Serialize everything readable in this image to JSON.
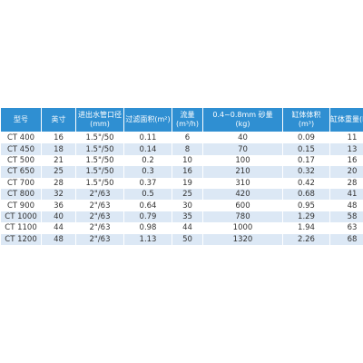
{
  "table": {
    "header": [
      [
        "型号"
      ],
      [
        "英寸"
      ],
      [
        "进出水管口径",
        "(mm)"
      ],
      [
        "过滤面积(m²)"
      ],
      [
        "流量",
        "(m³/h)"
      ],
      [
        "0.4~0.8mm 砂量",
        "(kg)"
      ],
      [
        "缸体体积",
        "(m³)"
      ],
      [
        "缸体重量(kg)"
      ]
    ],
    "rows": [
      [
        "CT 400",
        "16",
        "1.5\"/50",
        "0.11",
        "6",
        "40",
        "0.09",
        "11"
      ],
      [
        "CT 450",
        "18",
        "1.5\"/50",
        "0.14",
        "8",
        "70",
        "0.15",
        "13"
      ],
      [
        "CT 500",
        "21",
        "1.5\"/50",
        "0.2",
        "10",
        "100",
        "0.17",
        "16"
      ],
      [
        "CT 650",
        "25",
        "1.5\"/50",
        "0.3",
        "16",
        "210",
        "0.32",
        "20"
      ],
      [
        "CT 700",
        "28",
        "1.5\"/50",
        "0.37",
        "19",
        "310",
        "0.42",
        "28"
      ],
      [
        "CT 800",
        "32",
        "2\"/63",
        "0.5",
        "25",
        "420",
        "0.68",
        "41"
      ],
      [
        "CT 900",
        "36",
        "2\"/63",
        "0.64",
        "30",
        "600",
        "0.95",
        "48"
      ],
      [
        "CT 1000",
        "40",
        "2\"/63",
        "0.79",
        "35",
        "780",
        "1.29",
        "58"
      ],
      [
        "CT 1100",
        "44",
        "2\"/63",
        "0.98",
        "44",
        "1000",
        "1.94",
        "63"
      ],
      [
        "CT 1200",
        "48",
        "2\"/63",
        "1.13",
        "50",
        "1320",
        "2.26",
        "68"
      ]
    ]
  }
}
